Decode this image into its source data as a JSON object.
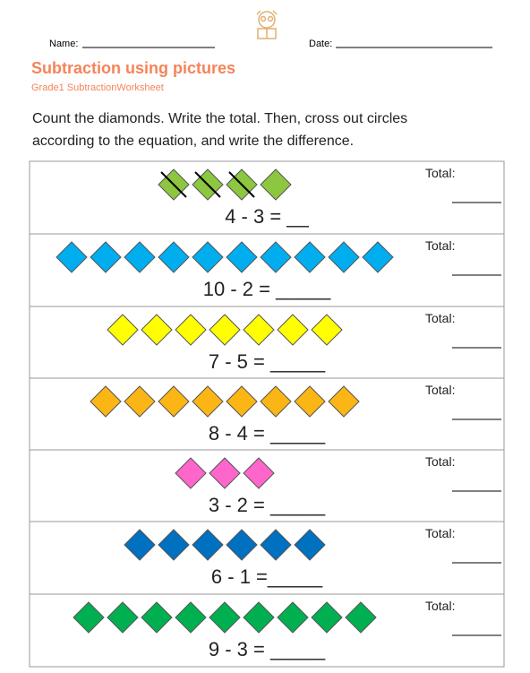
{
  "header": {
    "name_label": "Name:",
    "date_label": "Date:",
    "title": "Subtraction using pictures",
    "subtitle": "Grade1 SubtractionWorksheet"
  },
  "instructions": [
    "Count the diamonds. Write the total. Then, cross out circles",
    "according to the equation, and write the difference."
  ],
  "total_label": "Total:",
  "rows": [
    {
      "diamonds": 4,
      "crossed": 3,
      "color": "#8dc63f",
      "equation": "4 - 3 = __"
    },
    {
      "diamonds": 10,
      "crossed": 0,
      "color": "#00aeef",
      "equation": "10 - 2 = _____"
    },
    {
      "diamonds": 7,
      "crossed": 0,
      "color": "#ffff00",
      "equation": "7 - 5 = _____"
    },
    {
      "diamonds": 8,
      "crossed": 0,
      "color": "#fbb515",
      "equation": "8 - 4 = _____"
    },
    {
      "diamonds": 3,
      "crossed": 0,
      "color": "#ff66cc",
      "equation": "3 - 2 = _____"
    },
    {
      "diamonds": 6,
      "crossed": 0,
      "color": "#0070c0",
      "equation": "6 - 1 =_____"
    },
    {
      "diamonds": 9,
      "crossed": 0,
      "color": "#00b050",
      "equation": "9 - 3 = _____"
    }
  ]
}
